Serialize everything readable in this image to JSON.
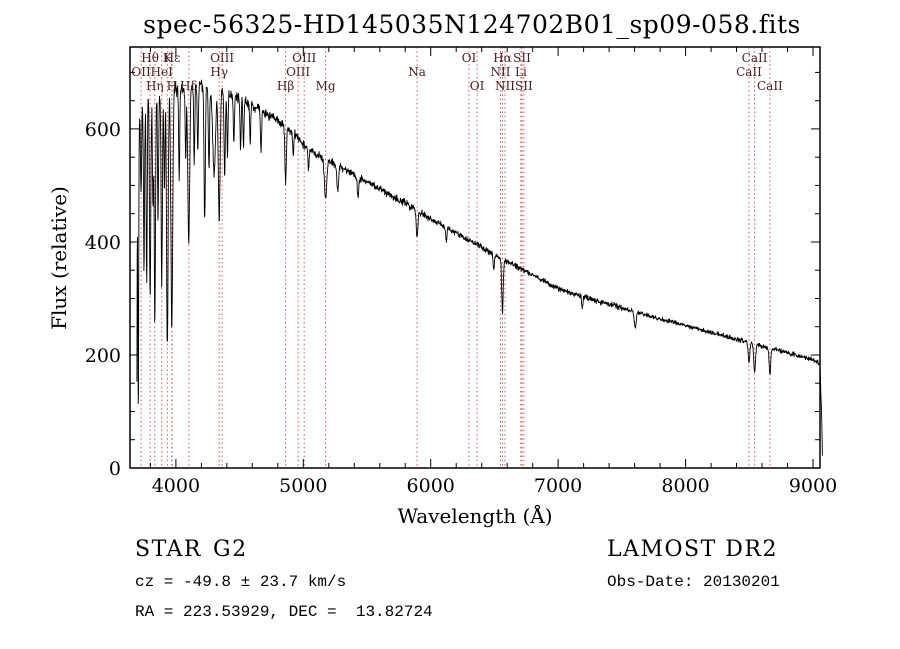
{
  "title": "spec-56325-HD145035N124702B01_sp09-058.fits",
  "axes": {
    "xlabel": "Wavelength (Å)",
    "ylabel": "Flux (relative)"
  },
  "footer": {
    "object_class": "STAR",
    "subclass": "G2",
    "cz": "cz = -49.8 ± 23.7 km/s",
    "radec": "RA = 223.53929, DEC =  13.82724",
    "survey": "LAMOST DR2",
    "obs_date": "Obs-Date: 20130201"
  },
  "chart_data": {
    "type": "line",
    "title": "spec-56325-HD145035N124702B01_sp09-058.fits",
    "xlabel": "Wavelength (Å)",
    "ylabel": "Flux (relative)",
    "xlim": [
      3640,
      9055
    ],
    "ylim": [
      0,
      745
    ],
    "xticks": [
      4000,
      5000,
      6000,
      7000,
      8000,
      9000
    ],
    "yticks": [
      0,
      200,
      400,
      600
    ],
    "minor_x_step": 200,
    "minor_y_step": 50,
    "grid": false,
    "line_color": "#000000",
    "marker_color": "#cc5555",
    "sample_range": [
      3694,
      9076
    ],
    "sample_step": 2.5,
    "noise_seed": 7,
    "noise": [
      {
        "max_wl": 4400,
        "sigma": 13
      },
      {
        "max_wl": 5000,
        "sigma": 9
      },
      {
        "max_wl": 6000,
        "sigma": 7
      },
      {
        "max_wl": 7500,
        "sigma": 5
      },
      {
        "max_wl": 9100,
        "sigma": 4
      }
    ],
    "continuum": [
      [
        3692,
        0
      ],
      [
        3697,
        420
      ],
      [
        3703,
        600
      ],
      [
        3730,
        638
      ],
      [
        3780,
        652
      ],
      [
        3850,
        660
      ],
      [
        3950,
        667
      ],
      [
        4050,
        672
      ],
      [
        4150,
        676
      ],
      [
        4250,
        674
      ],
      [
        4350,
        667
      ],
      [
        4450,
        659
      ],
      [
        4550,
        648
      ],
      [
        4650,
        635
      ],
      [
        4750,
        621
      ],
      [
        4850,
        607
      ],
      [
        4950,
        586
      ],
      [
        5050,
        562
      ],
      [
        5150,
        550
      ],
      [
        5250,
        538
      ],
      [
        5350,
        526
      ],
      [
        5450,
        513
      ],
      [
        5550,
        500
      ],
      [
        5650,
        488
      ],
      [
        5750,
        475
      ],
      [
        5850,
        462
      ],
      [
        5950,
        448
      ],
      [
        6050,
        435
      ],
      [
        6150,
        422
      ],
      [
        6250,
        409
      ],
      [
        6350,
        397
      ],
      [
        6450,
        384
      ],
      [
        6550,
        372
      ],
      [
        6650,
        360
      ],
      [
        6750,
        348
      ],
      [
        6850,
        336
      ],
      [
        6950,
        323
      ],
      [
        7050,
        313
      ],
      [
        7150,
        306
      ],
      [
        7250,
        300
      ],
      [
        7350,
        293
      ],
      [
        7450,
        287
      ],
      [
        7550,
        280
      ],
      [
        7650,
        274
      ],
      [
        7750,
        267
      ],
      [
        7850,
        261
      ],
      [
        7950,
        255
      ],
      [
        8050,
        249
      ],
      [
        8150,
        243
      ],
      [
        8250,
        237
      ],
      [
        8350,
        231
      ],
      [
        8450,
        225
      ],
      [
        8550,
        219
      ],
      [
        8650,
        213
      ],
      [
        8750,
        207
      ],
      [
        8850,
        201
      ],
      [
        8950,
        195
      ],
      [
        9030,
        189
      ],
      [
        9055,
        183
      ],
      [
        9068,
        90
      ],
      [
        9076,
        0
      ]
    ],
    "absorption_lines": [
      [
        3705,
        520,
        3
      ],
      [
        3727,
        150,
        4
      ],
      [
        3750,
        300,
        4
      ],
      [
        3771,
        330,
        4
      ],
      [
        3798,
        360,
        5
      ],
      [
        3820,
        200,
        4
      ],
      [
        3835,
        400,
        5
      ],
      [
        3860,
        220,
        4
      ],
      [
        3889,
        340,
        5
      ],
      [
        3910,
        180,
        4
      ],
      [
        3933,
        455,
        6
      ],
      [
        3968,
        425,
        7
      ],
      [
        4026,
        160,
        4
      ],
      [
        4077,
        130,
        4
      ],
      [
        4101,
        285,
        7
      ],
      [
        4144,
        140,
        4
      ],
      [
        4172,
        120,
        4
      ],
      [
        4226,
        235,
        5
      ],
      [
        4260,
        140,
        5
      ],
      [
        4300,
        160,
        10
      ],
      [
        4340,
        240,
        7
      ],
      [
        4383,
        150,
        5
      ],
      [
        4405,
        110,
        4
      ],
      [
        4455,
        90,
        4
      ],
      [
        4508,
        95,
        4
      ],
      [
        4531,
        80,
        4
      ],
      [
        4583,
        70,
        4
      ],
      [
        4668,
        80,
        4
      ],
      [
        4861,
        95,
        6
      ],
      [
        4921,
        45,
        4
      ],
      [
        5041,
        40,
        4
      ],
      [
        5175,
        70,
        9
      ],
      [
        5270,
        45,
        7
      ],
      [
        5430,
        35,
        6
      ],
      [
        5893,
        48,
        6
      ],
      [
        6122,
        25,
        5
      ],
      [
        6495,
        25,
        5
      ],
      [
        6563,
        95,
        6
      ],
      [
        7190,
        20,
        5
      ],
      [
        7605,
        28,
        8
      ],
      [
        8498,
        35,
        6
      ],
      [
        8542,
        50,
        7
      ],
      [
        8662,
        45,
        6
      ]
    ],
    "spectral_lines": [
      {
        "label": "OII",
        "wl": 3727,
        "row": 1
      },
      {
        "label": "Hθ",
        "wl": 3798,
        "row": 0
      },
      {
        "label": "Hη",
        "wl": 3835,
        "row": 2
      },
      {
        "label": "HeI",
        "wl": 3889,
        "row": 1
      },
      {
        "label": "K",
        "wl": 3933,
        "row": 0
      },
      {
        "label": "H",
        "wl": 3968,
        "row": 2
      },
      {
        "label": "Hε",
        "wl": 3970,
        "row": 0
      },
      {
        "label": "Hδ",
        "wl": 4102,
        "row": 2
      },
      {
        "label": "Hγ",
        "wl": 4340,
        "row": 1
      },
      {
        "label": "OIII",
        "wl": 4363,
        "row": 0
      },
      {
        "label": "Hβ",
        "wl": 4861,
        "row": 2
      },
      {
        "label": "OIII",
        "wl": 4959,
        "row": 1
      },
      {
        "label": "OIII",
        "wl": 5007,
        "row": 0
      },
      {
        "label": "Mg",
        "wl": 5175,
        "row": 2
      },
      {
        "label": "Na",
        "wl": 5893,
        "row": 1
      },
      {
        "label": "OI",
        "wl": 6300,
        "row": 0
      },
      {
        "label": "OI",
        "wl": 6364,
        "row": 2
      },
      {
        "label": "NII",
        "wl": 6548,
        "row": 1
      },
      {
        "label": "Hα",
        "wl": 6563,
        "row": 0
      },
      {
        "label": "NII",
        "wl": 6583,
        "row": 2
      },
      {
        "label": "Li",
        "wl": 6708,
        "row": 1
      },
      {
        "label": "SII",
        "wl": 6716,
        "row": 0
      },
      {
        "label": "SII",
        "wl": 6731,
        "row": 2
      },
      {
        "label": "CaII",
        "wl": 8498,
        "row": 1
      },
      {
        "label": "CaII",
        "wl": 8542,
        "row": 0
      },
      {
        "label": "CaII",
        "wl": 8662,
        "row": 2
      }
    ]
  }
}
